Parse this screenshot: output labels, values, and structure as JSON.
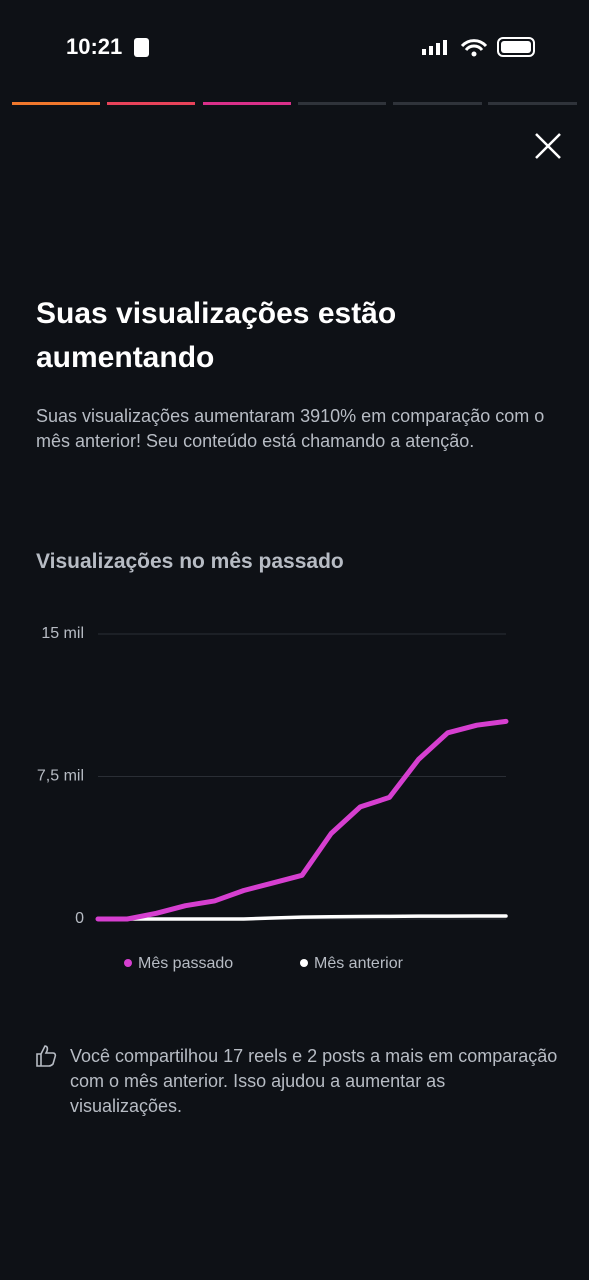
{
  "status": {
    "time": "10:21"
  },
  "content": {
    "title": "Suas visualizações estão aumentando",
    "description": "Suas visualizações aumentaram 3910% em comparação com o mês anterior! Seu conteúdo está chamando a atenção.",
    "footnote": "Você compartilhou 17 reels e 2 posts a mais em comparação com o mês anterior. Isso ajudou a aumentar as visualizações."
  },
  "chart_data": {
    "type": "line",
    "title": "Visualizações no mês passado",
    "categories": [
      null,
      null,
      null,
      null,
      null,
      null,
      null,
      null,
      null,
      null,
      null,
      null,
      null,
      null,
      null
    ],
    "series": [
      {
        "name": "Mês passado",
        "color": "#d63fd0",
        "values": [
          0,
          0,
          300,
          700,
          950,
          1500,
          1900,
          2300,
          4500,
          5900,
          6400,
          8400,
          9800,
          10200,
          10400
        ]
      },
      {
        "name": "Mês anterior",
        "color": "#ffffff",
        "values": [
          0,
          0,
          0,
          0,
          0,
          0,
          50,
          100,
          120,
          130,
          140,
          150,
          150,
          160,
          160
        ]
      }
    ],
    "ylim": [
      0,
      15000
    ],
    "yticks": [
      0,
      {
        "value": 7500,
        "label": "7,5 mil"
      },
      {
        "value": 15000,
        "label": "15 mil"
      }
    ],
    "grid": true
  }
}
